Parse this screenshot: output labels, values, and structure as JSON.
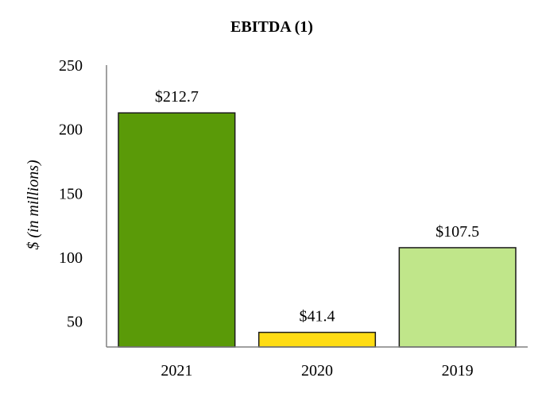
{
  "chart_data": {
    "type": "bar",
    "title": "EBITDA (1)",
    "ylabel": "$ (in millions)",
    "xlabel": "",
    "categories": [
      "2021",
      "2020",
      "2019"
    ],
    "values": [
      212.7,
      41.4,
      107.5
    ],
    "data_labels": [
      "$212.7",
      "$41.4",
      "$107.5"
    ],
    "bar_colors": [
      "#5a9a08",
      "#ffdc14",
      "#c0e68a"
    ],
    "bar_outline_color": "#1a1a1a",
    "ylim": [
      30,
      250
    ],
    "yticks": [
      50,
      100,
      150,
      200,
      250
    ],
    "grid": false,
    "legend": "none"
  }
}
